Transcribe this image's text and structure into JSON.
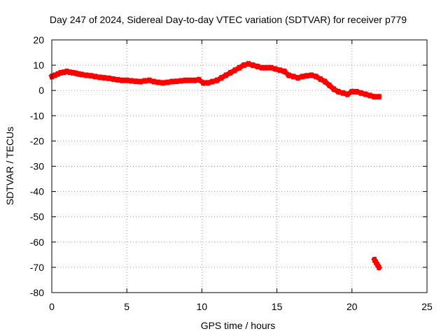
{
  "chart_data": {
    "type": "scatter",
    "title": "Day 247 of 2024, Sidereal Day-to-day VTEC variation (SDTVAR) for receiver p779",
    "xlabel": "GPS time / hours",
    "ylabel": "SDTVAR / TECUs",
    "xlim": [
      0,
      25
    ],
    "ylim": [
      -80,
      20
    ],
    "xticks": [
      0,
      5,
      10,
      15,
      20,
      25
    ],
    "yticks": [
      20,
      10,
      0,
      -10,
      -20,
      -30,
      -40,
      -50,
      -60,
      -70,
      -80
    ],
    "grid": true,
    "series_color": "#ff0000",
    "series": [
      {
        "name": "SDTVAR",
        "x": [
          0.0,
          0.2,
          0.4,
          0.6,
          0.8,
          1.0,
          1.2,
          1.4,
          1.6,
          1.8,
          2.0,
          2.3,
          2.6,
          2.9,
          3.2,
          3.5,
          3.8,
          4.1,
          4.4,
          4.7,
          5.0,
          5.3,
          5.6,
          5.9,
          6.2,
          6.5,
          6.8,
          7.1,
          7.4,
          7.7,
          8.0,
          8.3,
          8.6,
          8.9,
          9.2,
          9.5,
          9.8,
          10.1,
          10.4,
          10.7,
          11.0,
          11.3,
          11.6,
          11.9,
          12.2,
          12.5,
          12.8,
          13.1,
          13.4,
          13.7,
          14.0,
          14.3,
          14.6,
          14.9,
          15.2,
          15.5,
          15.8,
          16.1,
          16.4,
          16.7,
          17.0,
          17.3,
          17.6,
          17.9,
          18.2,
          18.5,
          18.8,
          19.1,
          19.4,
          19.7,
          20.0,
          20.3,
          20.6,
          20.9,
          21.2,
          21.5,
          21.8,
          21.5,
          21.6,
          21.7,
          21.8
        ],
        "y": [
          5.5,
          6.0,
          6.5,
          7.0,
          7.2,
          7.5,
          7.2,
          7.0,
          6.8,
          6.5,
          6.3,
          6.0,
          5.8,
          5.5,
          5.2,
          5.0,
          4.8,
          4.5,
          4.2,
          4.0,
          4.0,
          3.8,
          3.6,
          3.5,
          3.8,
          4.0,
          3.5,
          3.2,
          3.0,
          3.2,
          3.5,
          3.6,
          3.8,
          4.0,
          4.0,
          4.0,
          4.2,
          3.0,
          3.0,
          3.5,
          4.0,
          5.0,
          6.0,
          7.0,
          8.0,
          9.0,
          10.0,
          10.5,
          10.0,
          9.5,
          9.0,
          9.0,
          9.0,
          8.5,
          8.0,
          7.5,
          6.0,
          5.5,
          5.0,
          5.5,
          5.8,
          6.0,
          5.5,
          4.5,
          3.5,
          2.0,
          0.5,
          -0.5,
          -1.0,
          -1.5,
          -0.5,
          -0.5,
          -1.0,
          -1.5,
          -2.0,
          -2.5,
          -2.5,
          -67.0,
          -68.0,
          -69.0,
          -70.0
        ]
      }
    ]
  }
}
